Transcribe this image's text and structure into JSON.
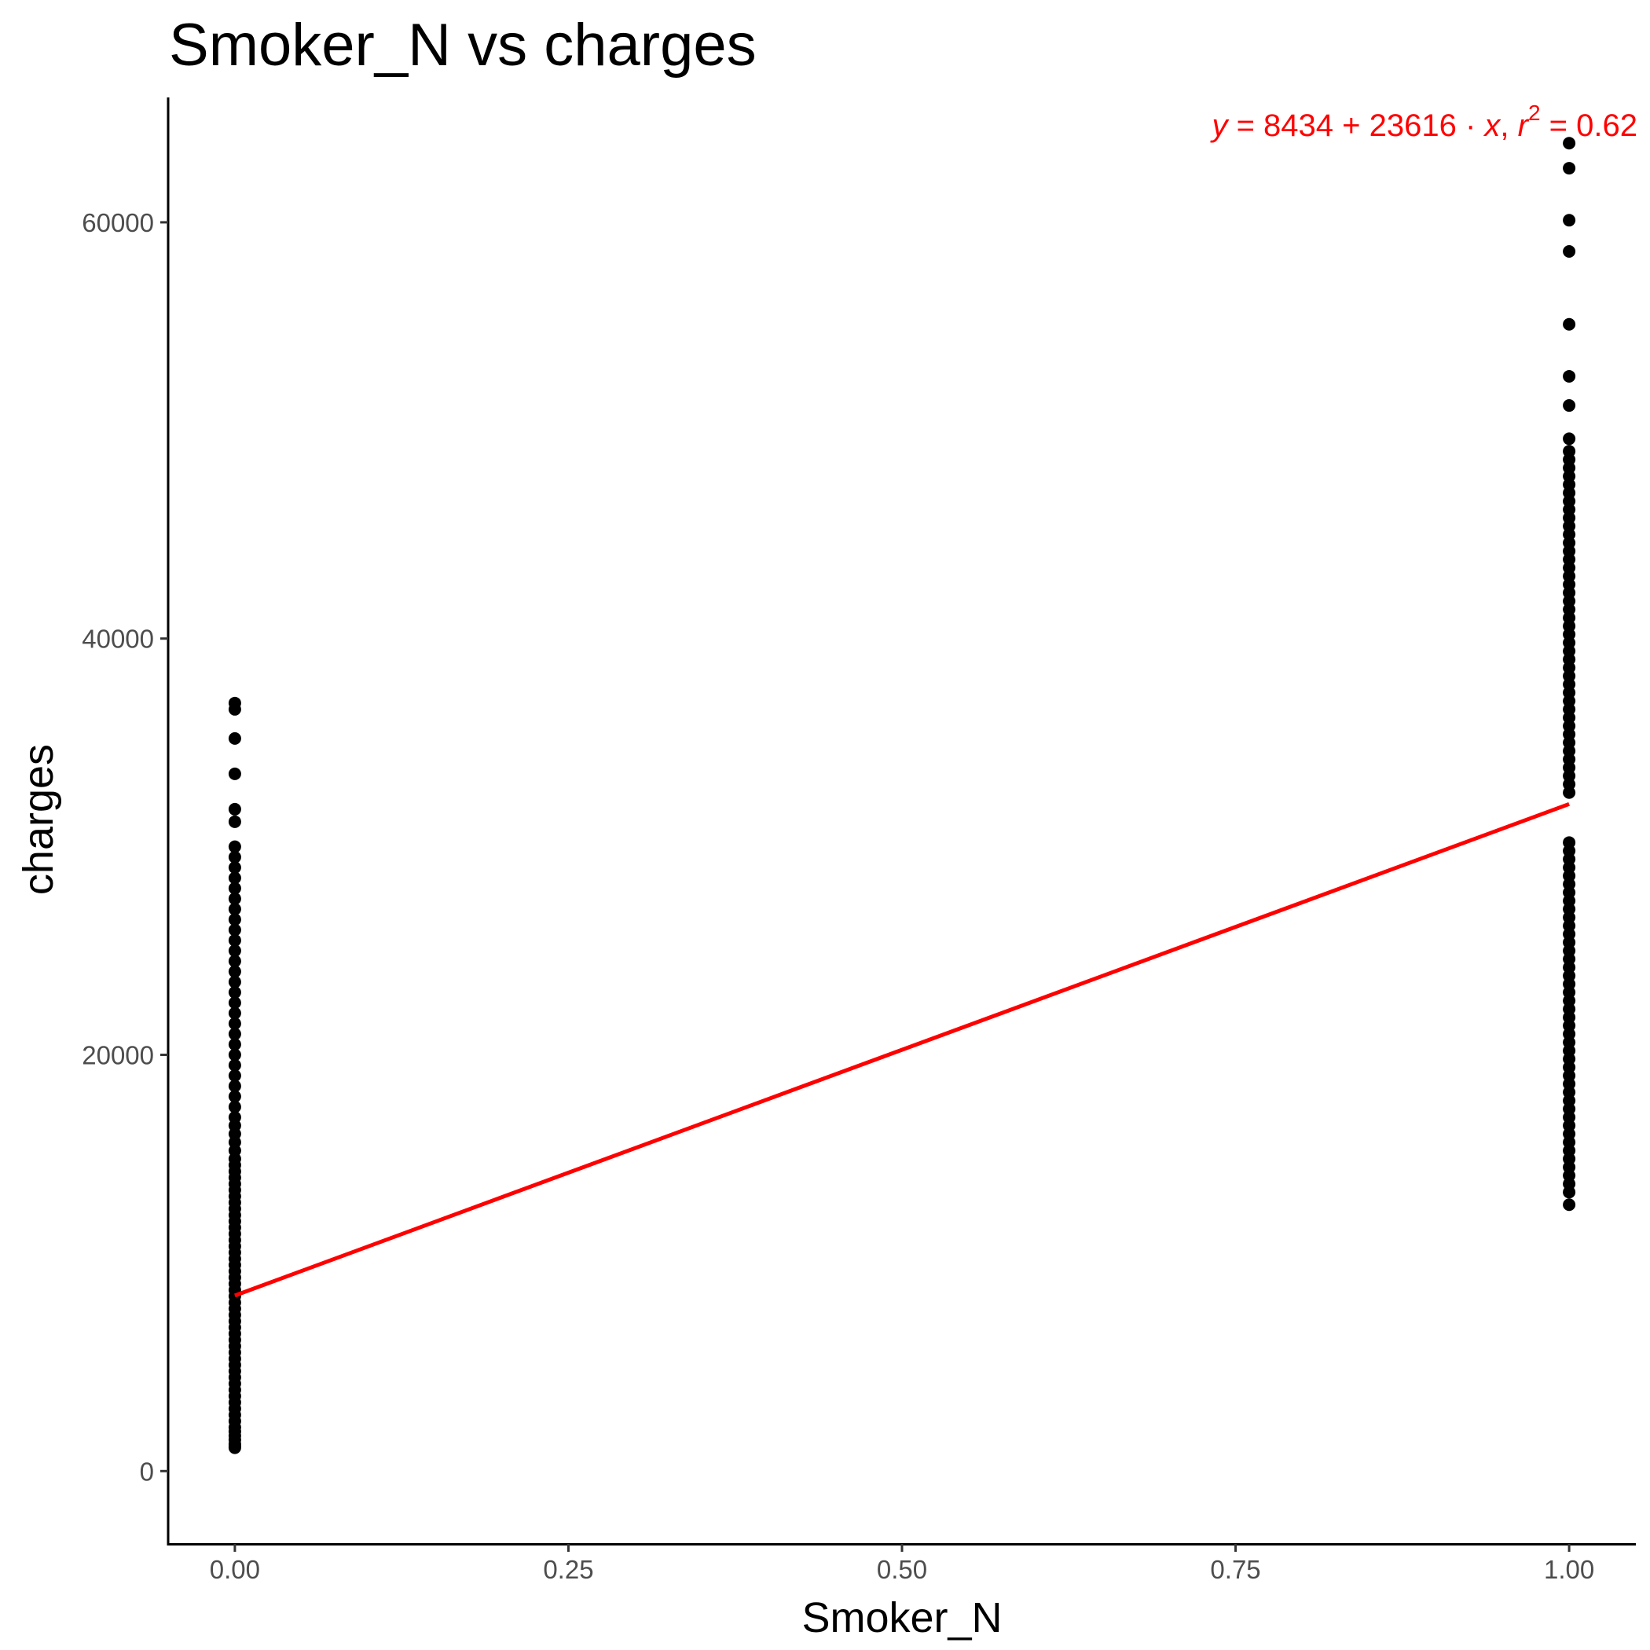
{
  "chart_data": {
    "type": "scatter",
    "title": "Smoker_N vs charges",
    "xlabel": "Smoker_N",
    "ylabel": "charges",
    "xlim": [
      -0.05,
      1.05
    ],
    "ylim": [
      -3500,
      66000
    ],
    "x_ticks": [
      0,
      0.25,
      0.5,
      0.75,
      1
    ],
    "x_tick_labels": [
      "0.00",
      "0.25",
      "0.50",
      "0.75",
      "1.00"
    ],
    "y_ticks": [
      0,
      20000,
      40000,
      60000
    ],
    "y_tick_labels": [
      "0",
      "20000",
      "40000",
      "60000"
    ],
    "grid": false,
    "point_color": "#000000",
    "series": [
      {
        "x": 0,
        "values": [
          1121,
          1200,
          1300,
          1500,
          1700,
          1900,
          2100,
          2400,
          2700,
          3000,
          3300,
          3600,
          3900,
          4200,
          4500,
          4800,
          5100,
          5400,
          5700,
          6000,
          6300,
          6600,
          6900,
          7200,
          7500,
          7800,
          8100,
          8400,
          8700,
          9000,
          9300,
          9600,
          9900,
          10200,
          10500,
          10800,
          11100,
          11400,
          11700,
          12000,
          12300,
          12600,
          12900,
          13200,
          13500,
          13800,
          14100,
          14400,
          14700,
          15000,
          15400,
          15800,
          16200,
          16600,
          17000,
          17500,
          18000,
          18500,
          19000,
          19500,
          20000,
          20500,
          21000,
          21500,
          22000,
          22500,
          23000,
          23500,
          24000,
          24500,
          25000,
          25500,
          26000,
          26500,
          27000,
          27500,
          28000,
          28500,
          29000,
          29500,
          30000,
          31200,
          31800,
          33500,
          35200,
          36600,
          36900
        ]
      },
      {
        "x": 1,
        "values": [
          12800,
          13400,
          13800,
          14200,
          14600,
          15000,
          15400,
          15800,
          16200,
          16600,
          17000,
          17400,
          17800,
          18200,
          18600,
          19000,
          19400,
          19800,
          20200,
          20600,
          21000,
          21400,
          21800,
          22200,
          22600,
          23000,
          23400,
          23800,
          24200,
          24600,
          25000,
          25400,
          25800,
          26200,
          26600,
          27000,
          27400,
          27800,
          28200,
          28600,
          29000,
          29400,
          29800,
          30200,
          32600,
          33000,
          33400,
          33800,
          34200,
          34600,
          35000,
          35400,
          35800,
          36200,
          36600,
          37000,
          37400,
          37800,
          38200,
          38600,
          39000,
          39400,
          39800,
          40200,
          40600,
          41000,
          41400,
          41800,
          42200,
          42600,
          43000,
          43400,
          43800,
          44200,
          44600,
          45000,
          45400,
          45800,
          46200,
          46600,
          47000,
          47400,
          47800,
          48200,
          48600,
          49000,
          49600,
          51200,
          52600,
          55100,
          58600,
          60100,
          62600,
          63800
        ]
      }
    ],
    "fit_line": {
      "intercept": 8434,
      "slope": 23616,
      "x_range": [
        0,
        1
      ],
      "color": "#ff0000"
    },
    "annotation": {
      "y_var": "y",
      "equals": " = ",
      "intercept_text": "8434",
      "plus": " + ",
      "slope_text": "23616",
      "dot": " · ",
      "x_var": "x",
      "comma": ",  ",
      "r_var": "r",
      "r_sup": "2",
      "r_eq": " = ",
      "r2_text": "0.62",
      "color": "#ff0000",
      "position": "top-right"
    }
  }
}
